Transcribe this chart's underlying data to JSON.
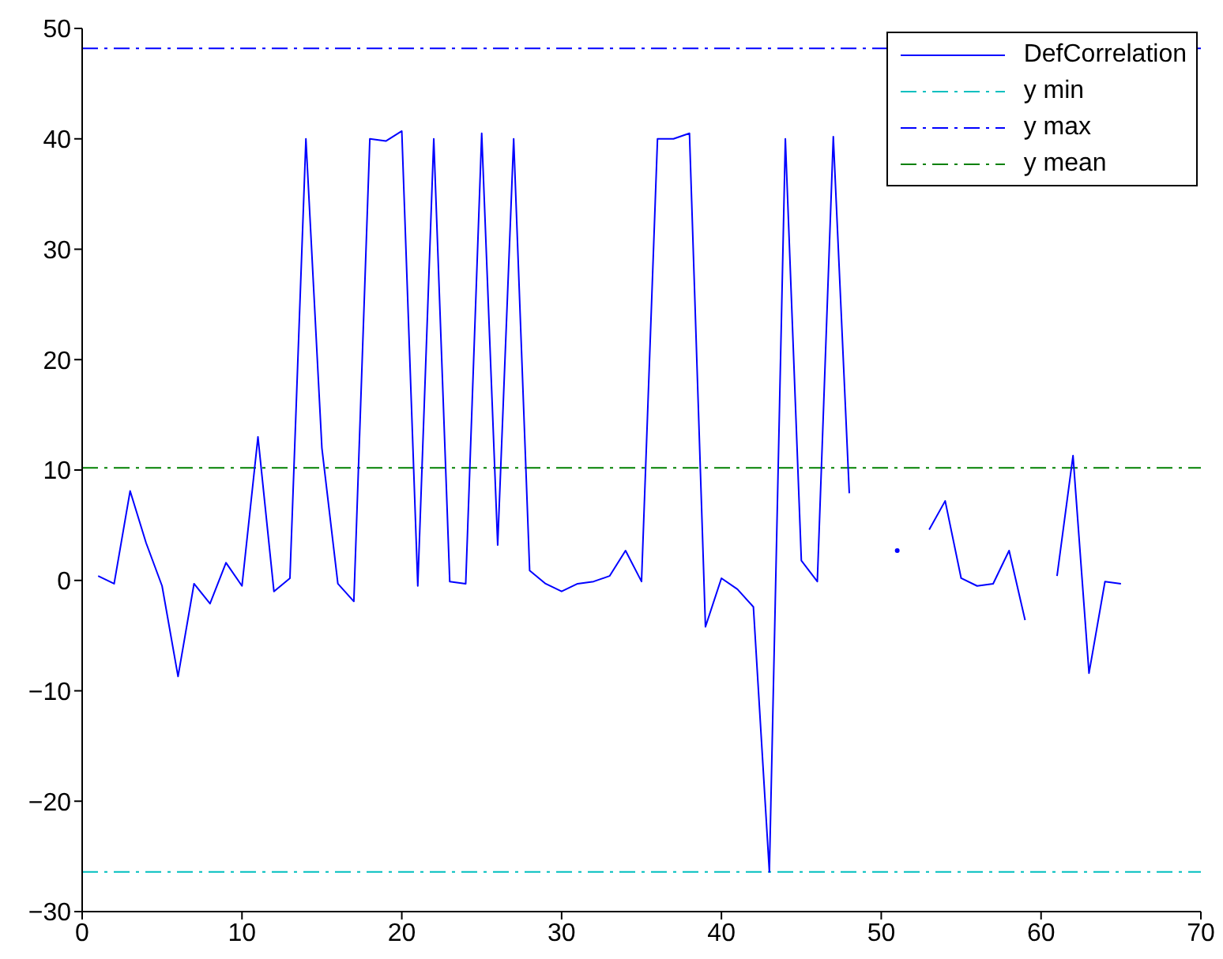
{
  "chart_data": {
    "type": "line",
    "x": [
      1,
      2,
      3,
      4,
      5,
      6,
      7,
      8,
      9,
      10,
      11,
      12,
      13,
      14,
      15,
      16,
      17,
      18,
      19,
      20,
      21,
      22,
      23,
      24,
      25,
      26,
      27,
      28,
      29,
      30,
      31,
      32,
      33,
      34,
      35,
      36,
      37,
      38,
      39,
      40,
      41,
      42,
      43,
      44,
      45,
      46,
      47,
      48,
      49,
      50,
      51,
      52,
      53,
      54,
      55,
      56,
      57,
      58,
      59,
      60,
      61,
      62,
      63,
      64,
      65
    ],
    "series": [
      {
        "name": "DefCorrelation",
        "color": "#0000ff",
        "values": [
          0.4,
          -0.3,
          8.1,
          3.4,
          -0.5,
          -8.7,
          -0.3,
          -2.1,
          1.6,
          -0.5,
          13.0,
          -1.0,
          0.2,
          40,
          12.0,
          -0.3,
          -1.9,
          40,
          39.8,
          40.7,
          -0.5,
          40,
          -0.1,
          -0.3,
          40.5,
          3.2,
          40,
          0.9,
          -0.3,
          -1.0,
          -0.3,
          -0.1,
          0.4,
          2.7,
          -0.1,
          40,
          40,
          40.5,
          -4.2,
          0.2,
          -0.8,
          -2.4,
          -26.4,
          40,
          1.8,
          -0.1,
          40.2,
          7.9,
          null,
          null,
          2.7,
          null,
          4.6,
          7.2,
          0.2,
          -0.5,
          -0.3,
          2.7,
          -3.6,
          null,
          0.4,
          11.3,
          -8.4,
          -0.1,
          -0.3
        ]
      }
    ],
    "ref_lines": [
      {
        "axis": "y",
        "value": -26.4,
        "label": "y min",
        "color": "#00bfbf",
        "line_style": "dashed"
      },
      {
        "axis": "y",
        "value": 48.2,
        "label": "y max",
        "color": "#0000ff",
        "line_style": "dashed"
      },
      {
        "axis": "y",
        "value": 10.2,
        "label": "y mean",
        "color": "#008000",
        "line_style": "dashed"
      }
    ],
    "xlim": [
      0,
      70
    ],
    "xticks": [
      0,
      10,
      20,
      30,
      40,
      50,
      60,
      70
    ],
    "ylim": [
      -30,
      50
    ],
    "yticks": [
      -30,
      -20,
      -10,
      0,
      10,
      20,
      30,
      40,
      50
    ],
    "legend": "top right",
    "grid": false,
    "marker": "none",
    "line_style": "solid"
  }
}
